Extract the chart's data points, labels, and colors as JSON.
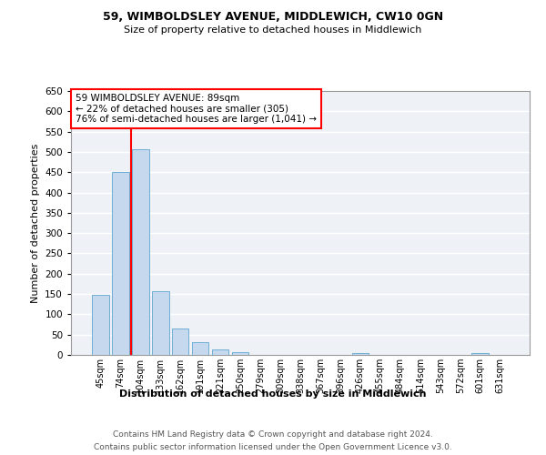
{
  "title_line1": "59, WIMBOLDSLEY AVENUE, MIDDLEWICH, CW10 0GN",
  "title_line2": "Size of property relative to detached houses in Middlewich",
  "xlabel": "Distribution of detached houses by size in Middlewich",
  "ylabel": "Number of detached properties",
  "categories": [
    "45sqm",
    "74sqm",
    "104sqm",
    "133sqm",
    "162sqm",
    "191sqm",
    "221sqm",
    "250sqm",
    "279sqm",
    "309sqm",
    "338sqm",
    "367sqm",
    "396sqm",
    "426sqm",
    "455sqm",
    "484sqm",
    "514sqm",
    "543sqm",
    "572sqm",
    "601sqm",
    "631sqm"
  ],
  "values": [
    148,
    450,
    507,
    158,
    65,
    32,
    13,
    6,
    0,
    0,
    0,
    0,
    0,
    5,
    0,
    0,
    0,
    0,
    0,
    4,
    0
  ],
  "bar_color": "#c5d8ed",
  "bar_edge_color": "#6faed4",
  "annotation_line_bin": 1.55,
  "annotation_text_line1": "59 WIMBOLDSLEY AVENUE: 89sqm",
  "annotation_text_line2": "← 22% of detached houses are smaller (305)",
  "annotation_text_line3": "76% of semi-detached houses are larger (1,041) →",
  "annotation_box_color": "white",
  "annotation_box_edge_color": "red",
  "vline_color": "red",
  "ylim": [
    0,
    650
  ],
  "yticks": [
    0,
    50,
    100,
    150,
    200,
    250,
    300,
    350,
    400,
    450,
    500,
    550,
    600,
    650
  ],
  "background_color": "#eef2f7",
  "grid_color": "white",
  "footer_line1": "Contains HM Land Registry data © Crown copyright and database right 2024.",
  "footer_line2": "Contains public sector information licensed under the Open Government Licence v3.0."
}
